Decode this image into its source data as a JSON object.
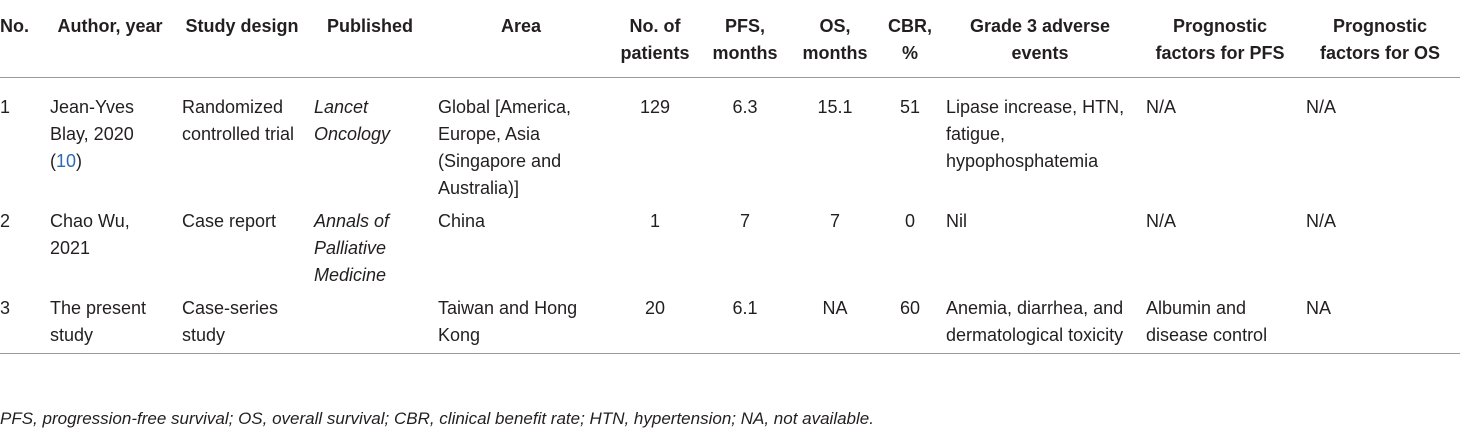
{
  "table": {
    "headers": [
      "No.",
      "Author, year",
      "Study design",
      "Published",
      "Area",
      "No. of patients",
      "PFS, months",
      "OS, months",
      "CBR, %",
      "Grade 3 adverse events",
      "Prognostic factors for PFS",
      "Prognostic factors for OS"
    ],
    "rows": [
      {
        "no": "1",
        "author": "Jean-Yves Blay, 2020",
        "author_ref": "10",
        "design": "Randomized controlled trial",
        "published": "Lancet Oncology",
        "area": "Global [America, Europe, Asia (Singapore and Australia)]",
        "patients": "129",
        "pfs": "6.3",
        "os": "15.1",
        "cbr": "51",
        "adverse": "Lipase increase, HTN, fatigue, hypophosphatemia",
        "prog_pfs": "N/A",
        "prog_os": "N/A"
      },
      {
        "no": "2",
        "author": "Chao Wu, 2021",
        "design": "Case report",
        "published": "Annals of Palliative Medicine",
        "area": "China",
        "patients": "1",
        "pfs": "7",
        "os": "7",
        "cbr": "0",
        "adverse": "Nil",
        "prog_pfs": "N/A",
        "prog_os": "N/A"
      },
      {
        "no": "3",
        "author": "The present study",
        "design": "Case-series study",
        "published": "",
        "area": "Taiwan and Hong Kong",
        "patients": "20",
        "pfs": "6.1",
        "os": "NA",
        "cbr": "60",
        "adverse": "Anemia, diarrhea, and dermatological toxicity",
        "prog_pfs": "Albumin and disease control",
        "prog_os": "NA"
      }
    ]
  },
  "footnote": "PFS, progression-free survival; OS, overall survival; CBR, clinical benefit rate; HTN, hypertension; NA, not available."
}
